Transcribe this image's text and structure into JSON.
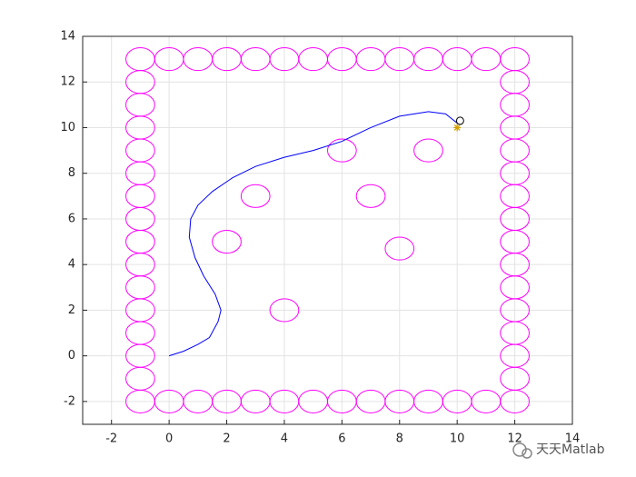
{
  "chart_data": {
    "type": "line",
    "xlim": [
      -3,
      14
    ],
    "ylim": [
      -3,
      14
    ],
    "xticks": [
      -2,
      0,
      2,
      4,
      6,
      8,
      10,
      12,
      14
    ],
    "yticks": [
      -2,
      0,
      2,
      4,
      6,
      8,
      10,
      12,
      14
    ],
    "grid": true,
    "path": {
      "color": "#0000ff",
      "x": [
        0,
        0.5,
        1,
        1.4,
        1.7,
        1.8,
        1.6,
        1.2,
        0.9,
        0.7,
        0.75,
        1,
        1.5,
        2.2,
        3,
        4,
        5,
        6,
        7,
        8,
        9,
        9.6,
        10
      ],
      "y": [
        0,
        0.2,
        0.5,
        0.8,
        1.5,
        2,
        2.7,
        3.5,
        4.3,
        5.2,
        6,
        6.6,
        7.2,
        7.8,
        8.3,
        8.7,
        9,
        9.4,
        10,
        10.5,
        10.7,
        10.6,
        10.2
      ]
    },
    "obstacles": {
      "color": "#ff00ff",
      "radius": 0.5,
      "x": [
        -1,
        0,
        1,
        2,
        3,
        4,
        5,
        6,
        7,
        8,
        9,
        10,
        11,
        12,
        -1,
        0,
        1,
        2,
        3,
        4,
        5,
        6,
        7,
        8,
        9,
        10,
        11,
        12,
        -1,
        -1,
        -1,
        -1,
        -1,
        -1,
        -1,
        -1,
        -1,
        -1,
        -1,
        -1,
        -1,
        -1,
        12,
        12,
        12,
        12,
        12,
        12,
        12,
        12,
        12,
        12,
        12,
        12,
        12,
        12,
        2,
        3,
        4,
        6,
        7,
        8,
        9
      ],
      "y": [
        13,
        13,
        13,
        13,
        13,
        13,
        13,
        13,
        13,
        13,
        13,
        13,
        13,
        13,
        -2,
        -2,
        -2,
        -2,
        -2,
        -2,
        -2,
        -2,
        -2,
        -2,
        -2,
        -2,
        -2,
        -2,
        -1,
        0,
        1,
        2,
        3,
        4,
        5,
        6,
        7,
        8,
        9,
        10,
        11,
        12,
        -1,
        0,
        1,
        2,
        3,
        4,
        5,
        6,
        7,
        8,
        9,
        10,
        11,
        12,
        5,
        7,
        2,
        9,
        7,
        4.7,
        9
      ]
    },
    "markers": [
      {
        "x": 10,
        "y": 10,
        "color": "#d4a000",
        "symbol": "star"
      },
      {
        "x": 10.1,
        "y": 10.3,
        "color": "#000000",
        "symbol": "circle"
      }
    ],
    "watermark": "天天Matlab"
  }
}
